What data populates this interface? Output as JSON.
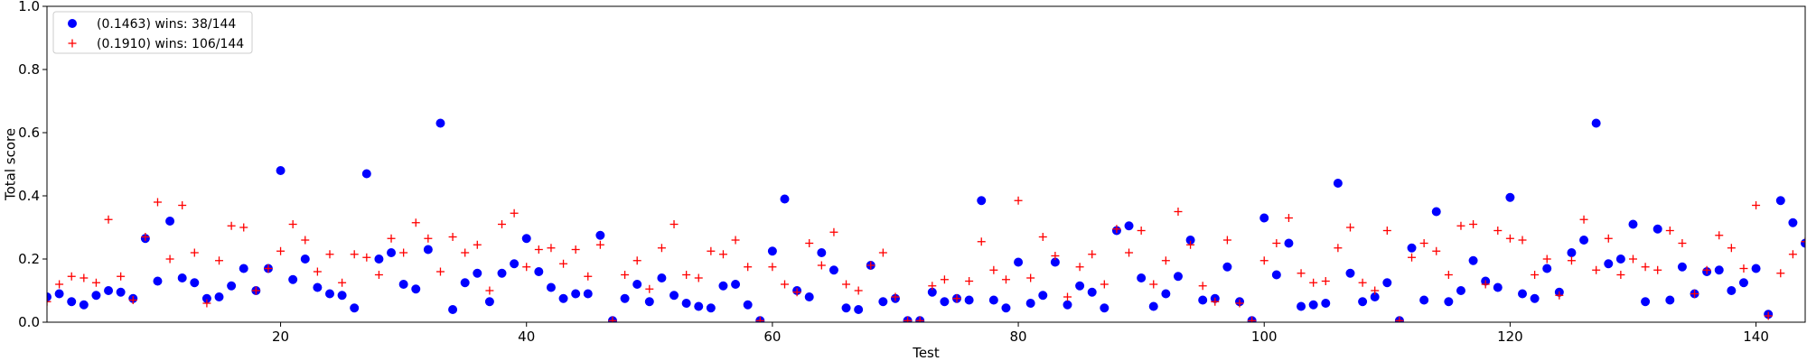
{
  "chart_data": {
    "type": "scatter",
    "title": "",
    "xlabel": "Test",
    "ylabel": "Total score",
    "xlim": [
      1,
      144
    ],
    "ylim": [
      0,
      1.0
    ],
    "x_ticks": [
      20,
      40,
      60,
      80,
      100,
      120,
      140
    ],
    "y_ticks": [
      0.0,
      0.2,
      0.4,
      0.6,
      0.8,
      1.0
    ],
    "x_tick_labels": [
      "20",
      "40",
      "60",
      "80",
      "100",
      "120",
      "140"
    ],
    "y_tick_labels": [
      "0.0",
      "0.2",
      "0.4",
      "0.6",
      "0.8",
      "1.0"
    ],
    "grid": false,
    "legend_position": "top-left",
    "series": [
      {
        "name": "(0.1463) wins: 38/144",
        "marker": "circle",
        "color": "#0000ff",
        "values": [
          0.08,
          0.09,
          0.065,
          0.055,
          0.085,
          0.1,
          0.095,
          0.075,
          0.265,
          0.13,
          0.32,
          0.14,
          0.125,
          0.075,
          0.08,
          0.115,
          0.17,
          0.1,
          0.17,
          0.48,
          0.135,
          0.2,
          0.11,
          0.09,
          0.085,
          0.045,
          0.47,
          0.2,
          0.22,
          0.12,
          0.105,
          0.23,
          0.63,
          0.04,
          0.125,
          0.155,
          0.065,
          0.155,
          0.185,
          0.265,
          0.16,
          0.11,
          0.075,
          0.09,
          0.09,
          0.275,
          0.005,
          0.075,
          0.12,
          0.065,
          0.14,
          0.085,
          0.06,
          0.05,
          0.045,
          0.115,
          0.12,
          0.055,
          0.005,
          0.225,
          0.39,
          0.1,
          0.08,
          0.22,
          0.165,
          0.045,
          0.04,
          0.18,
          0.065,
          0.075,
          0.005,
          0.005,
          0.095,
          0.065,
          0.075,
          0.07,
          0.385,
          0.07,
          0.045,
          0.19,
          0.06,
          0.085,
          0.19,
          0.055,
          0.115,
          0.095,
          0.045,
          0.29,
          0.305,
          0.14,
          0.05,
          0.09,
          0.145,
          0.26,
          0.07,
          0.075,
          0.175,
          0.065,
          0.005,
          0.33,
          0.15,
          0.25,
          0.05,
          0.055,
          0.06,
          0.44,
          0.155,
          0.065,
          0.08,
          0.125,
          0.005,
          0.235,
          0.07,
          0.35,
          0.065,
          0.1,
          0.195,
          0.13,
          0.11,
          0.395,
          0.09,
          0.075,
          0.17,
          0.095,
          0.22,
          0.26,
          0.63,
          0.185,
          0.2,
          0.31,
          0.065,
          0.295,
          0.07,
          0.175,
          0.09,
          0.16,
          0.165,
          0.1,
          0.125,
          0.17,
          0.025,
          0.385,
          0.315,
          0.25
        ]
      },
      {
        "name": "(0.1910) wins: 106/144",
        "marker": "plus",
        "color": "#ff0000",
        "values": [
          0.065,
          0.12,
          0.145,
          0.14,
          0.125,
          0.325,
          0.145,
          0.07,
          0.27,
          0.38,
          0.2,
          0.37,
          0.22,
          0.06,
          0.195,
          0.305,
          0.3,
          0.1,
          0.17,
          0.225,
          0.31,
          0.26,
          0.16,
          0.215,
          0.125,
          0.215,
          0.205,
          0.15,
          0.265,
          0.22,
          0.315,
          0.265,
          0.16,
          0.27,
          0.22,
          0.245,
          0.1,
          0.31,
          0.345,
          0.175,
          0.23,
          0.235,
          0.185,
          0.23,
          0.145,
          0.245,
          0.005,
          0.15,
          0.195,
          0.105,
          0.235,
          0.31,
          0.15,
          0.14,
          0.225,
          0.215,
          0.26,
          0.175,
          0.005,
          0.175,
          0.12,
          0.095,
          0.25,
          0.18,
          0.285,
          0.12,
          0.1,
          0.18,
          0.22,
          0.08,
          0.005,
          0.005,
          0.115,
          0.135,
          0.075,
          0.13,
          0.255,
          0.165,
          0.135,
          0.385,
          0.14,
          0.27,
          0.21,
          0.08,
          0.175,
          0.215,
          0.12,
          0.295,
          0.22,
          0.29,
          0.12,
          0.195,
          0.35,
          0.245,
          0.115,
          0.065,
          0.26,
          0.06,
          0.005,
          0.195,
          0.25,
          0.33,
          0.155,
          0.125,
          0.13,
          0.235,
          0.3,
          0.125,
          0.1,
          0.29,
          0.005,
          0.205,
          0.25,
          0.225,
          0.15,
          0.305,
          0.31,
          0.12,
          0.29,
          0.265,
          0.26,
          0.15,
          0.2,
          0.085,
          0.195,
          0.325,
          0.165,
          0.265,
          0.15,
          0.2,
          0.175,
          0.165,
          0.29,
          0.25,
          0.09,
          0.165,
          0.275,
          0.235,
          0.17,
          0.37,
          0.02,
          0.155,
          0.215,
          0.255
        ]
      }
    ]
  }
}
